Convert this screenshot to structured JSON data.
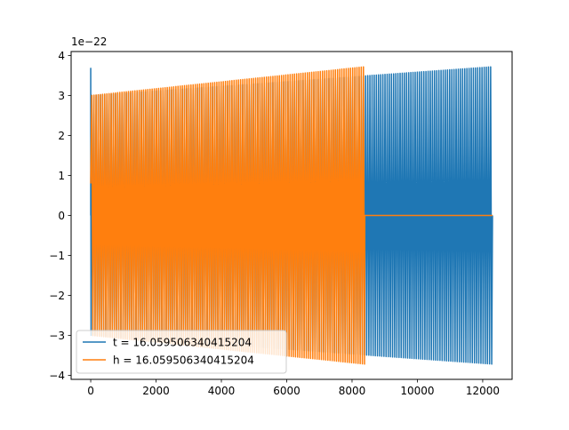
{
  "chart_data": {
    "type": "line",
    "title": "",
    "xlabel": "",
    "ylabel": "",
    "y_scale_label": "1e−22",
    "xlim": [
      -600,
      12900
    ],
    "ylim": [
      -4.1,
      4.1
    ],
    "x_ticks": [
      0,
      2000,
      4000,
      6000,
      8000,
      10000,
      12000
    ],
    "x_tick_labels": [
      "0",
      "2000",
      "4000",
      "6000",
      "8000",
      "10000",
      "12000"
    ],
    "y_ticks": [
      -4,
      -3,
      -2,
      -1,
      0,
      1,
      2,
      3,
      4
    ],
    "y_tick_labels": [
      "−4",
      "−3",
      "−2",
      "−1",
      "0",
      "1",
      "2",
      "3",
      "4"
    ],
    "grid": false,
    "legend_position": "lower-left",
    "series": [
      {
        "name": "t = 16.059506340415204",
        "color": "#1f77b4",
        "x_start": 0,
        "x_end": 12300,
        "initial_spike": 3.68,
        "amplitude_start": 3.0,
        "amplitude_end": 3.72,
        "oscillation_period": 66
      },
      {
        "name": "h = 16.059506340415204",
        "color": "#ff7f0e",
        "x_start": 0,
        "x_end": 8390,
        "amplitude_start": 3.0,
        "amplitude_end": 3.72,
        "oscillation_period": 66,
        "zero_after_x": 8390,
        "zero_until_x": 12300
      }
    ]
  }
}
